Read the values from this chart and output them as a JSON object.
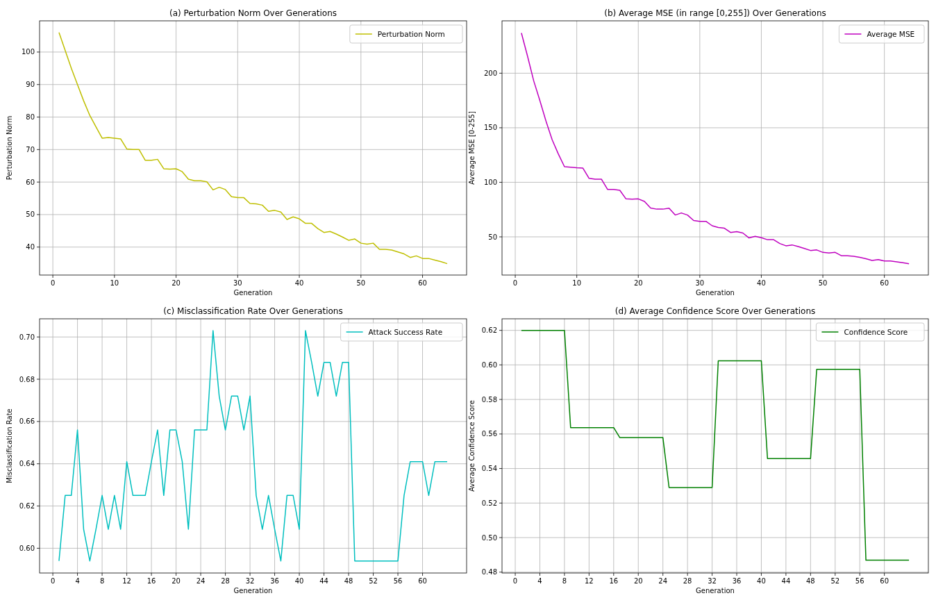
{
  "chart_data": [
    {
      "type": "line",
      "title": "(a) Perturbation Norm Over Generations",
      "xlabel": "Generation",
      "ylabel": "Perturbation Norm",
      "grid": true,
      "legend": "top right",
      "x": [
        1,
        2,
        3,
        4,
        5,
        6,
        7,
        8,
        9,
        10,
        11,
        12,
        13,
        14,
        15,
        16,
        17,
        18,
        19,
        20,
        21,
        22,
        23,
        24,
        25,
        26,
        27,
        28,
        29,
        30,
        31,
        32,
        33,
        34,
        35,
        36,
        37,
        38,
        39,
        40,
        41,
        42,
        43,
        44,
        45,
        46,
        47,
        48,
        49,
        50,
        51,
        52,
        53,
        54,
        55,
        56,
        57,
        58,
        59,
        60,
        61,
        62,
        63,
        64
      ],
      "xlim": [
        -2.15,
        67.15
      ],
      "xticks": [
        0,
        10,
        20,
        30,
        40,
        50,
        60
      ],
      "ylim": [
        31.4,
        109.6
      ],
      "yticks": [
        40,
        50,
        60,
        70,
        80,
        90,
        100
      ],
      "series": [
        {
          "name": "Perturbation Norm",
          "color": "#bfbf00",
          "values": [
            106,
            100.5,
            95,
            90,
            85,
            80.5,
            77,
            73.5,
            73.7,
            73.5,
            73.3,
            70.2,
            70,
            70,
            66.7,
            66.7,
            67,
            64.1,
            64,
            64.1,
            63.2,
            60.9,
            60.4,
            60.4,
            60.1,
            57.6,
            58.4,
            57.7,
            55.5,
            55.2,
            55.2,
            53.4,
            53.3,
            52.9,
            51,
            51.3,
            50.8,
            48.5,
            49.3,
            48.7,
            47.3,
            47.3,
            45.7,
            44.5,
            44.8,
            44,
            43.1,
            42.1,
            42.5,
            41.2,
            40.9,
            41.2,
            39.3,
            39.3,
            39.1,
            38.5,
            37.9,
            36.8,
            37.3,
            36.5,
            36.5,
            36,
            35.5,
            34.9
          ]
        }
      ]
    },
    {
      "type": "line",
      "title": "(b) Average MSE (in range [0,255]) Over Generations",
      "xlabel": "Generation",
      "ylabel": "Average MSE [0-255]",
      "grid": true,
      "legend": "top right",
      "x": [
        1,
        2,
        3,
        4,
        5,
        6,
        7,
        8,
        9,
        10,
        11,
        12,
        13,
        14,
        15,
        16,
        17,
        18,
        19,
        20,
        21,
        22,
        23,
        24,
        25,
        26,
        27,
        28,
        29,
        30,
        31,
        32,
        33,
        34,
        35,
        36,
        37,
        38,
        39,
        40,
        41,
        42,
        43,
        44,
        45,
        46,
        47,
        48,
        49,
        50,
        51,
        52,
        53,
        54,
        55,
        56,
        57,
        58,
        59,
        60,
        61,
        62,
        63,
        64
      ],
      "xlim": [
        -2.15,
        67.15
      ],
      "xticks": [
        0,
        10,
        20,
        30,
        40,
        50,
        60
      ],
      "ylim": [
        15,
        248
      ],
      "yticks": [
        50,
        100,
        150,
        200
      ],
      "series": [
        {
          "name": "Average MSE",
          "color": "#bf00bf",
          "values": [
            236.9,
            215.5,
            193,
            175,
            156,
            139,
            126,
            114.3,
            113.8,
            113.3,
            113,
            103.6,
            102.9,
            102.9,
            93.5,
            93.5,
            92.7,
            84.8,
            84.6,
            84.8,
            82.5,
            76.4,
            75.4,
            75.4,
            76.2,
            70,
            71.9,
            70,
            65,
            64.2,
            64.2,
            60.2,
            58.6,
            57.9,
            54,
            54.8,
            53.5,
            49,
            50.5,
            49.2,
            47.4,
            47.4,
            43.9,
            41.8,
            42.6,
            41.1,
            39.3,
            37.5,
            38,
            35.8,
            35.2,
            35.8,
            32.7,
            32.7,
            32.2,
            31.2,
            29.9,
            28.4,
            29.1,
            27.9,
            27.9,
            27.1,
            26.3,
            25.3
          ]
        }
      ]
    },
    {
      "type": "line",
      "title": "(c) Misclassification Rate Over Generations",
      "xlabel": "Generation",
      "ylabel": "Misclassification Rate",
      "grid": true,
      "legend": "top right",
      "x": [
        1,
        2,
        3,
        4,
        5,
        6,
        7,
        8,
        9,
        10,
        11,
        12,
        13,
        14,
        15,
        16,
        17,
        18,
        19,
        20,
        21,
        22,
        23,
        24,
        25,
        26,
        27,
        28,
        29,
        30,
        31,
        32,
        33,
        34,
        35,
        36,
        37,
        38,
        39,
        40,
        41,
        42,
        43,
        44,
        45,
        46,
        47,
        48,
        49,
        50,
        51,
        52,
        53,
        54,
        55,
        56,
        57,
        58,
        59,
        60,
        61,
        62,
        63,
        64
      ],
      "xlim": [
        -2.15,
        67.15
      ],
      "xticks": [
        0,
        4,
        8,
        12,
        16,
        20,
        24,
        28,
        32,
        36,
        40,
        44,
        48,
        52,
        56,
        60
      ],
      "ylim": [
        0.5883,
        0.7086
      ],
      "yticks": [
        {
          "value": 0.6,
          "label": "0.60"
        },
        0.62,
        0.64,
        0.66,
        0.68,
        {
          "value": 0.7,
          "label": "0.70"
        }
      ],
      "series": [
        {
          "name": "Attack Success Rate",
          "color": "#00bfbf",
          "values": [
            0.594,
            0.625,
            0.625,
            0.656,
            0.609,
            0.594,
            0.609,
            0.625,
            0.609,
            0.625,
            0.609,
            0.641,
            0.625,
            0.625,
            0.625,
            0.641,
            0.656,
            0.625,
            0.656,
            0.656,
            0.641,
            0.609,
            0.656,
            0.656,
            0.656,
            0.703,
            0.672,
            0.656,
            0.672,
            0.672,
            0.656,
            0.672,
            0.625,
            0.609,
            0.625,
            0.609,
            0.594,
            0.625,
            0.625,
            0.609,
            0.703,
            0.688,
            0.672,
            0.688,
            0.688,
            0.672,
            0.688,
            0.688,
            0.594,
            0.594,
            0.594,
            0.594,
            0.594,
            0.594,
            0.594,
            0.594,
            0.625,
            0.641,
            0.641,
            0.641,
            0.625,
            0.641,
            0.641,
            0.641
          ]
        }
      ]
    },
    {
      "type": "line",
      "title": "(d) Average Confidence Score Over Generations",
      "xlabel": "Generation",
      "ylabel": "Average Confidence Score",
      "grid": true,
      "legend": "top right",
      "x": [
        1,
        2,
        3,
        4,
        5,
        6,
        7,
        8,
        9,
        10,
        11,
        12,
        13,
        14,
        15,
        16,
        17,
        18,
        19,
        20,
        21,
        22,
        23,
        24,
        25,
        26,
        27,
        28,
        29,
        30,
        31,
        32,
        33,
        34,
        35,
        36,
        37,
        38,
        39,
        40,
        41,
        42,
        43,
        44,
        45,
        46,
        47,
        48,
        49,
        50,
        51,
        52,
        53,
        54,
        55,
        56,
        57,
        58,
        59,
        60,
        61,
        62,
        63,
        64
      ],
      "xlim": [
        -2.15,
        67.15
      ],
      "xticks": [
        0,
        4,
        8,
        12,
        16,
        20,
        24,
        28,
        32,
        36,
        40,
        44,
        48,
        52,
        56,
        60
      ],
      "ylim": [
        0.4795,
        0.6267
      ],
      "yticks": [
        0.48,
        {
          "value": 0.5,
          "label": "0.50"
        },
        0.52,
        0.54,
        0.56,
        0.58,
        {
          "value": 0.6,
          "label": "0.60"
        },
        0.62
      ],
      "series": [
        {
          "name": "Confidence Score",
          "color": "#008000",
          "values": [
            0.62,
            0.62,
            0.62,
            0.62,
            0.62,
            0.62,
            0.62,
            0.62,
            0.5637,
            0.5637,
            0.5637,
            0.5637,
            0.5637,
            0.5637,
            0.5637,
            0.5637,
            0.5579,
            0.5579,
            0.5579,
            0.5579,
            0.5579,
            0.5579,
            0.5579,
            0.5579,
            0.529,
            0.529,
            0.529,
            0.529,
            0.529,
            0.529,
            0.529,
            0.529,
            0.6024,
            0.6024,
            0.6024,
            0.6024,
            0.6024,
            0.6024,
            0.6024,
            0.6024,
            0.5458,
            0.5458,
            0.5458,
            0.5458,
            0.5458,
            0.5458,
            0.5458,
            0.5458,
            0.5974,
            0.5974,
            0.5974,
            0.5974,
            0.5974,
            0.5974,
            0.5974,
            0.5974,
            0.4869,
            0.4869,
            0.4869,
            0.4869,
            0.4869,
            0.4869,
            0.4869,
            0.4869
          ]
        }
      ]
    }
  ]
}
